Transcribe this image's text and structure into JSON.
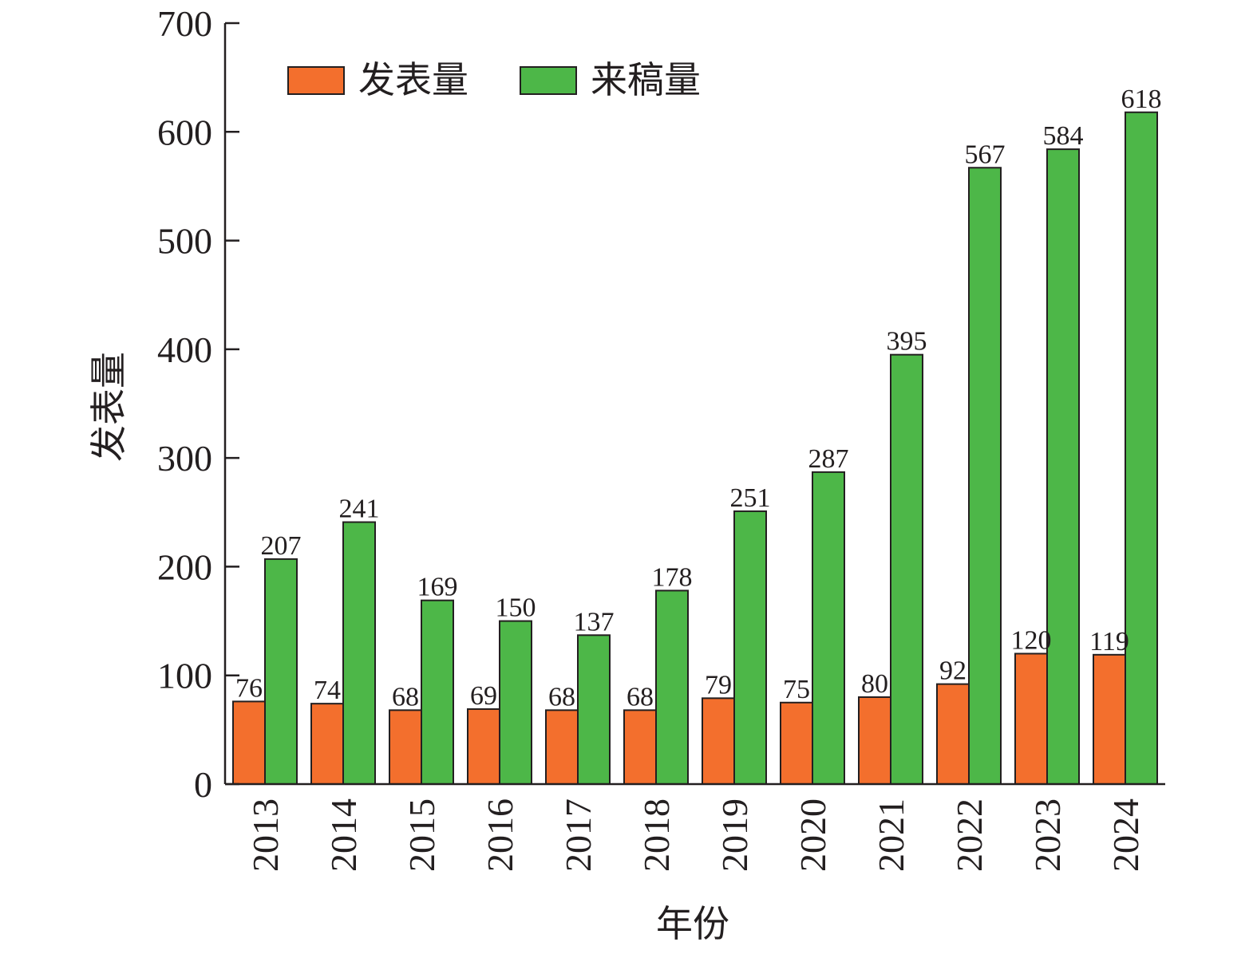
{
  "chart_data": {
    "type": "bar",
    "xlabel": "年份",
    "ylabel": "发表量",
    "ylim": [
      0,
      700
    ],
    "yticks": [
      0,
      100,
      200,
      300,
      400,
      500,
      600,
      700
    ],
    "grid": false,
    "legend_position": "top-left",
    "categories": [
      "2013",
      "2014",
      "2015",
      "2016",
      "2017",
      "2018",
      "2019",
      "2020",
      "2021",
      "2022",
      "2023",
      "2024"
    ],
    "series": [
      {
        "name": "发表量",
        "color": "#f36f2d",
        "values": [
          76,
          74,
          68,
          69,
          68,
          68,
          79,
          75,
          80,
          92,
          120,
          119
        ]
      },
      {
        "name": "来稿量",
        "color": "#4db748",
        "values": [
          207,
          241,
          169,
          150,
          137,
          178,
          251,
          287,
          395,
          567,
          584,
          618
        ]
      }
    ]
  }
}
